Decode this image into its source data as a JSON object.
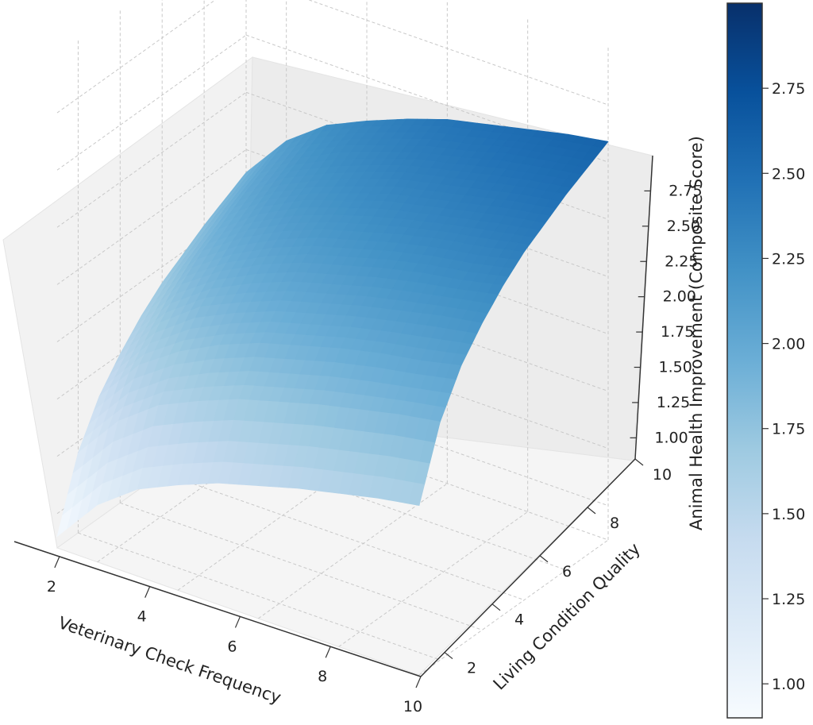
{
  "chart_data": {
    "type": "surface3d",
    "title": "",
    "xlabel": "Veterinary Check Frequency",
    "ylabel": "Living Condition Quality",
    "zlabel": "Animal Health Improvement (Composite Score)",
    "x_range": [
      1,
      10
    ],
    "y_range": [
      1,
      10
    ],
    "z_range": [
      0.85,
      3.0
    ],
    "x_ticks": [
      "2",
      "4",
      "6",
      "8",
      "10"
    ],
    "y_ticks": [
      "2",
      "4",
      "6",
      "8",
      "10"
    ],
    "z_ticks": [
      "1.00",
      "1.25",
      "1.50",
      "1.75",
      "2.00",
      "2.25",
      "2.50",
      "2.75"
    ],
    "colorbar_ticks": [
      "1.00",
      "1.25",
      "1.50",
      "1.75",
      "2.00",
      "2.25",
      "2.50",
      "2.75"
    ],
    "colorbar_range": [
      0.9,
      3.0
    ],
    "colormap": "Blues",
    "grid": true,
    "x": [
      1,
      2,
      3,
      4,
      5,
      6,
      7,
      8,
      9,
      10
    ],
    "y": [
      1,
      2,
      3,
      4,
      5,
      6,
      7,
      8,
      9,
      10
    ],
    "z": [
      [
        0.9,
        1.1,
        1.23,
        1.31,
        1.38,
        1.43,
        1.48,
        1.52,
        1.56,
        1.59
      ],
      [
        1.2,
        1.4,
        1.53,
        1.61,
        1.68,
        1.73,
        1.78,
        1.82,
        1.86,
        1.89
      ],
      [
        1.38,
        1.58,
        1.7,
        1.79,
        1.86,
        1.91,
        1.96,
        2.0,
        2.03,
        2.07
      ],
      [
        1.5,
        1.7,
        1.83,
        1.91,
        1.98,
        2.03,
        2.08,
        2.12,
        2.16,
        2.19
      ],
      [
        1.6,
        1.8,
        1.92,
        2.01,
        2.08,
        2.13,
        2.18,
        2.22,
        2.25,
        2.29
      ],
      [
        1.68,
        1.88,
        2.0,
        2.09,
        2.16,
        2.21,
        2.26,
        2.3,
        2.33,
        2.37
      ],
      [
        1.74,
        1.94,
        2.07,
        2.16,
        2.22,
        2.28,
        2.32,
        2.36,
        2.4,
        2.43
      ],
      [
        1.8,
        2.0,
        2.13,
        2.21,
        2.28,
        2.34,
        2.38,
        2.42,
        2.46,
        2.49
      ],
      [
        1.85,
        2.05,
        2.18,
        2.27,
        2.33,
        2.39,
        2.43,
        2.48,
        2.51,
        2.54
      ],
      [
        1.9,
        2.1,
        2.23,
        2.31,
        2.38,
        2.44,
        2.48,
        2.52,
        2.56,
        2.59
      ]
    ]
  }
}
